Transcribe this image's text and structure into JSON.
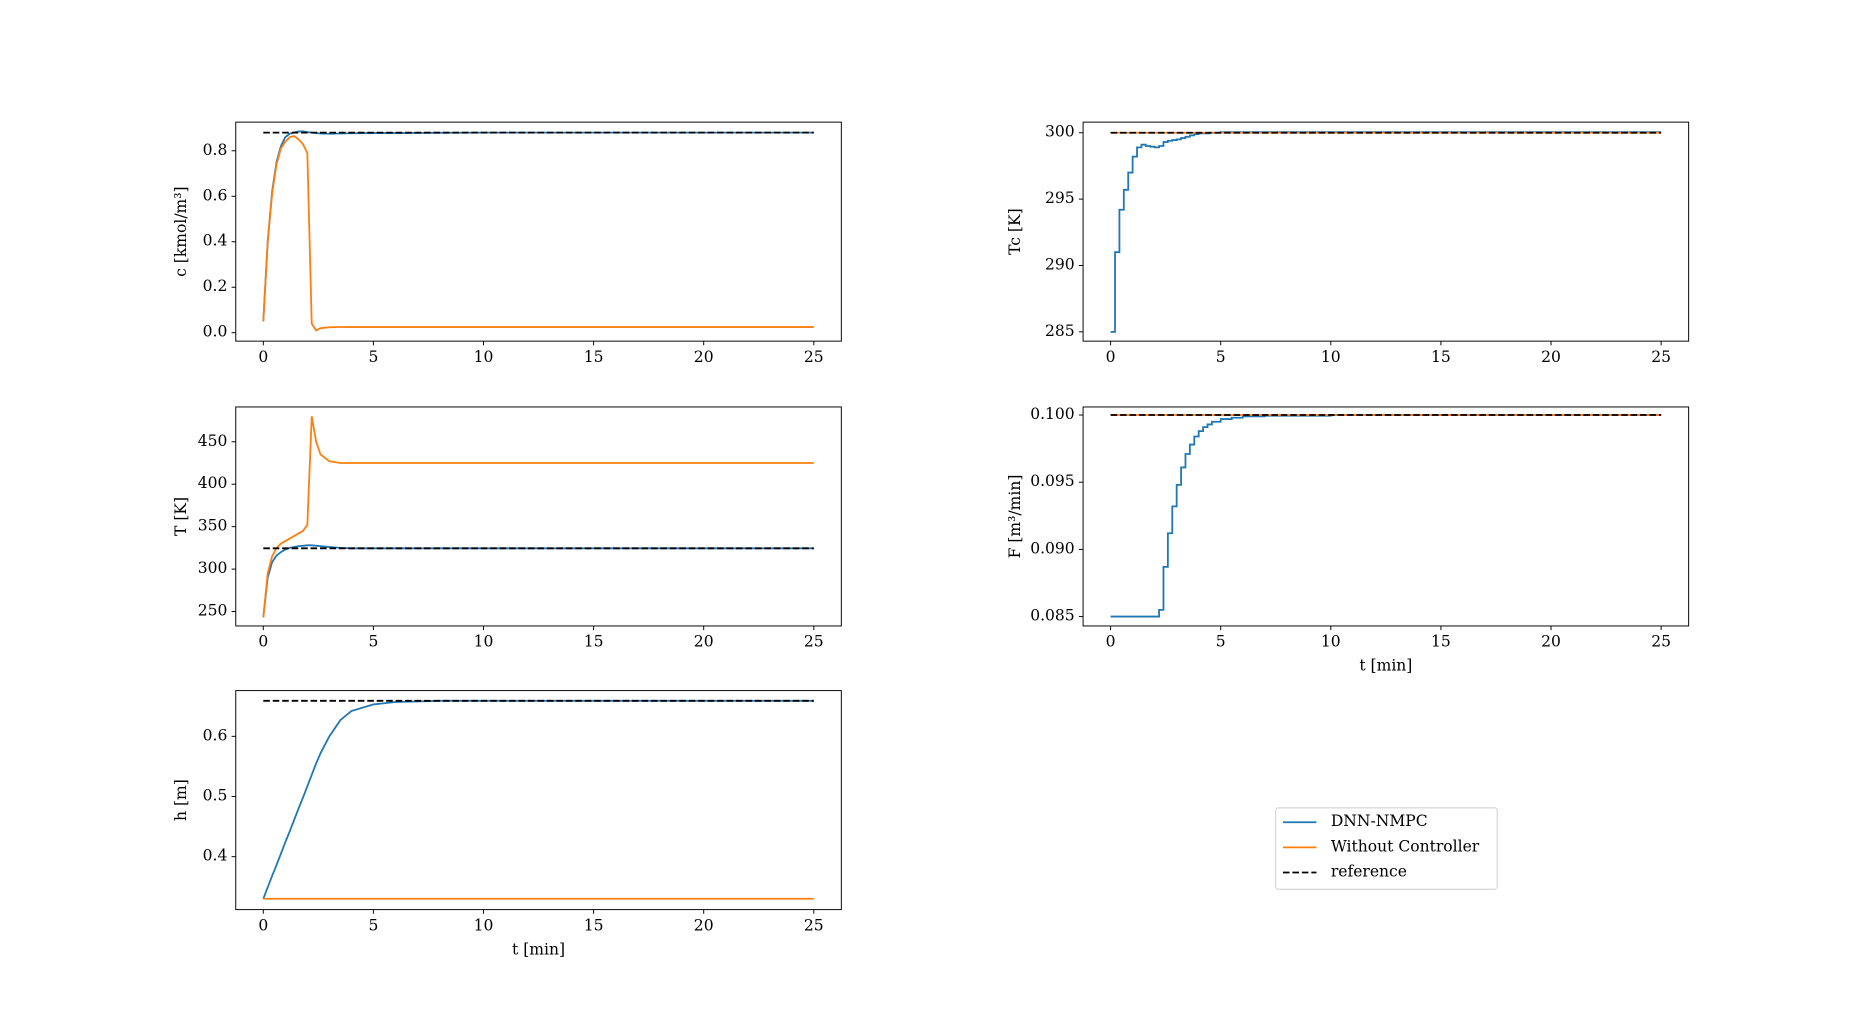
{
  "chart_data": [
    {
      "type": "line",
      "ylabel": "c [kmol/m³]",
      "xlim": [
        -1.25,
        26.25
      ],
      "ylim": [
        -0.037,
        0.926
      ],
      "xticks": [
        0,
        5,
        10,
        15,
        20,
        25
      ],
      "yticks": [
        {
          "value": 0,
          "label": "0.0"
        },
        0.2,
        0.4,
        0.6,
        0.8
      ],
      "x": [
        0,
        0.2,
        0.4,
        0.6,
        0.8,
        1.0,
        1.2,
        1.4,
        1.6,
        1.8,
        2.0,
        2.2,
        2.4,
        2.6,
        3,
        3.5,
        4,
        5,
        6,
        8,
        10,
        15,
        20,
        25
      ],
      "series": [
        {
          "name": "DNN-NMPC",
          "color": "#1f77b4",
          "values": [
            0.05,
            0.4,
            0.62,
            0.75,
            0.82,
            0.86,
            0.875,
            0.88,
            0.885,
            0.885,
            0.882,
            0.88,
            0.878,
            0.876,
            0.875,
            0.876,
            0.877,
            0.878,
            0.878,
            0.879,
            0.88,
            0.88,
            0.88,
            0.88
          ]
        },
        {
          "name": "Without Controller",
          "color": "#ff7f0e",
          "values": [
            0.05,
            0.4,
            0.61,
            0.74,
            0.81,
            0.84,
            0.86,
            0.865,
            0.85,
            0.83,
            0.79,
            0.04,
            0.01,
            0.02,
            0.024,
            0.025,
            0.025,
            0.025,
            0.025,
            0.025,
            0.025,
            0.025,
            0.025,
            0.025
          ]
        },
        {
          "name": "reference",
          "color": "#000000",
          "linestyle": "dashed",
          "x": [
            0,
            25
          ],
          "values": [
            0.88,
            0.88
          ]
        }
      ]
    },
    {
      "type": "line",
      "ylabel": "T [K]",
      "xlim": [
        -1.25,
        26.25
      ],
      "ylim": [
        233,
        491
      ],
      "xticks": [
        0,
        5,
        10,
        15,
        20,
        25
      ],
      "yticks": [
        250,
        300,
        350,
        400,
        450
      ],
      "x": [
        0,
        0.2,
        0.4,
        0.6,
        0.8,
        1.0,
        1.2,
        1.4,
        1.6,
        1.8,
        2.0,
        2.2,
        2.4,
        2.6,
        3,
        3.5,
        4,
        5,
        6,
        8,
        10,
        15,
        20,
        25
      ],
      "series": [
        {
          "name": "DNN-NMPC",
          "color": "#1f77b4",
          "values": [
            243,
            290,
            308,
            316,
            320,
            323,
            325,
            326,
            327,
            327.5,
            328,
            328,
            327.5,
            327,
            326,
            325,
            324.5,
            324.5,
            324.5,
            324.5,
            324.5,
            324.5,
            324.5,
            324.5
          ]
        },
        {
          "name": "Without Controller",
          "color": "#ff7f0e",
          "values": [
            243,
            295,
            315,
            325,
            330,
            333,
            336,
            339,
            342,
            345,
            352,
            480,
            450,
            435,
            427,
            425,
            425,
            425,
            425,
            425,
            425,
            425,
            425,
            425
          ]
        },
        {
          "name": "reference",
          "color": "#000000",
          "linestyle": "dashed",
          "x": [
            0,
            25
          ],
          "values": [
            324.5,
            324.5
          ]
        }
      ]
    },
    {
      "type": "line",
      "ylabel": "h [m]",
      "xlabel": "t [min]",
      "xlim": [
        -1.25,
        26.25
      ],
      "ylim": [
        0.312,
        0.676
      ],
      "xticks": [
        0,
        5,
        10,
        15,
        20,
        25
      ],
      "yticks": [
        0.4,
        0.5,
        0.6
      ],
      "x": [
        0,
        0.2,
        0.4,
        0.6,
        0.8,
        1.0,
        1.2,
        1.4,
        1.6,
        1.8,
        2.0,
        2.2,
        2.4,
        2.6,
        3,
        3.5,
        4,
        5,
        6,
        8,
        10,
        15,
        20,
        25
      ],
      "series": [
        {
          "name": "DNN-NMPC",
          "color": "#1f77b4",
          "values": [
            0.33,
            0.349,
            0.368,
            0.386,
            0.405,
            0.424,
            0.442,
            0.461,
            0.48,
            0.498,
            0.517,
            0.536,
            0.555,
            0.572,
            0.6,
            0.627,
            0.642,
            0.653,
            0.657,
            0.659,
            0.659,
            0.659,
            0.659,
            0.659
          ]
        },
        {
          "name": "Without Controller",
          "color": "#ff7f0e",
          "values": [
            0.33,
            0.33,
            0.33,
            0.33,
            0.33,
            0.33,
            0.33,
            0.33,
            0.33,
            0.33,
            0.33,
            0.33,
            0.33,
            0.33,
            0.33,
            0.33,
            0.33,
            0.33,
            0.33,
            0.33,
            0.33,
            0.33,
            0.33,
            0.33
          ]
        },
        {
          "name": "reference",
          "color": "#000000",
          "linestyle": "dashed",
          "x": [
            0,
            25
          ],
          "values": [
            0.659,
            0.659
          ]
        }
      ]
    },
    {
      "type": "line",
      "ylabel": "Tc [K]",
      "xlim": [
        -1.25,
        26.25
      ],
      "ylim": [
        284.3,
        300.8
      ],
      "xticks": [
        0,
        5,
        10,
        15,
        20,
        25
      ],
      "yticks": [
        285,
        290,
        295,
        300
      ],
      "series": [
        {
          "name": "DNN-NMPC",
          "color": "#1f77b4",
          "drawstyle": "steps-post",
          "x": [
            0,
            0.2,
            0.4,
            0.6,
            0.8,
            1.0,
            1.2,
            1.4,
            1.6,
            1.8,
            2.0,
            2.2,
            2.4,
            2.6,
            2.8,
            3.0,
            3.2,
            3.4,
            3.6,
            3.8,
            4.0,
            4.5,
            5,
            25
          ],
          "values": [
            285,
            291,
            294.2,
            295.7,
            297,
            298.2,
            298.9,
            299.1,
            299.0,
            298.95,
            298.9,
            299.0,
            299.3,
            299.4,
            299.45,
            299.5,
            299.6,
            299.7,
            299.8,
            299.9,
            299.95,
            300.0,
            300.05,
            300.05
          ]
        },
        {
          "name": "Without Controller",
          "color": "#ff7f0e",
          "x": [
            0,
            25
          ],
          "values": [
            300,
            300
          ]
        },
        {
          "name": "reference",
          "color": "#000000",
          "linestyle": "dashed",
          "x": [
            0,
            25
          ],
          "values": [
            300,
            300
          ]
        }
      ]
    },
    {
      "type": "line",
      "ylabel": "F [m³/min]",
      "xlabel": "t [min]",
      "xlim": [
        -1.25,
        26.25
      ],
      "ylim": [
        0.0843,
        0.1006
      ],
      "xticks": [
        0,
        5,
        10,
        15,
        20,
        25
      ],
      "yticks": [
        0.085,
        {
          "value": 0.09,
          "label": "0.090"
        },
        0.095,
        {
          "value": 0.1,
          "label": "0.100"
        }
      ],
      "series": [
        {
          "name": "DNN-NMPC",
          "color": "#1f77b4",
          "drawstyle": "steps-post",
          "x": [
            0,
            2.2,
            2.4,
            2.6,
            2.8,
            3.0,
            3.2,
            3.4,
            3.6,
            3.8,
            4.0,
            4.2,
            4.4,
            4.6,
            5,
            5.5,
            6,
            7,
            10,
            25
          ],
          "values": [
            0.085,
            0.0855,
            0.0887,
            0.0912,
            0.0932,
            0.0948,
            0.0961,
            0.0971,
            0.0978,
            0.0984,
            0.0988,
            0.0991,
            0.0993,
            0.0995,
            0.0997,
            0.0998,
            0.0999,
            0.09995,
            0.1,
            0.1
          ]
        },
        {
          "name": "Without Controller",
          "color": "#ff7f0e",
          "x": [
            0,
            25
          ],
          "values": [
            0.1,
            0.1
          ]
        },
        {
          "name": "reference",
          "color": "#000000",
          "linestyle": "dashed",
          "x": [
            0,
            25
          ],
          "values": [
            0.1,
            0.1
          ]
        }
      ]
    }
  ]
}
